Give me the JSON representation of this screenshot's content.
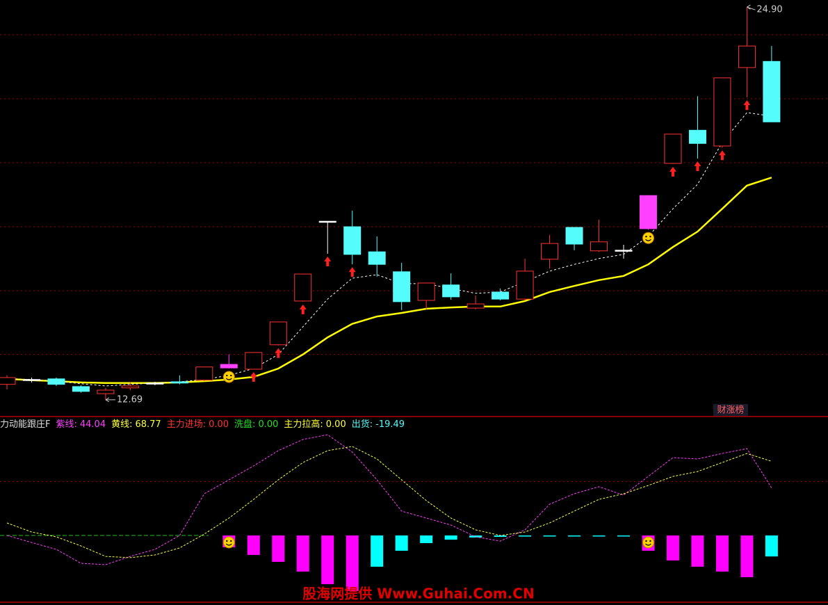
{
  "chart_data": [
    {
      "type": "candlestick",
      "open": [
        13.17,
        13.3,
        13.34,
        13.1,
        12.88,
        13.06,
        13.19,
        13.25,
        13.3,
        13.68,
        13.64,
        14.4,
        15.76,
        18.22,
        18.07,
        17.29,
        16.67,
        15.78,
        16.26,
        15.54,
        16.04,
        15.82,
        17.06,
        18.05,
        17.32,
        17.34,
        18.01,
        20.04,
        21.07,
        20.58,
        23.02,
        23.21
      ],
      "high": [
        13.45,
        13.38,
        13.38,
        13.14,
        13.06,
        13.25,
        13.25,
        13.45,
        13.71,
        14.1,
        14.16,
        15.11,
        16.6,
        18.24,
        18.57,
        17.77,
        16.95,
        16.32,
        16.62,
        15.93,
        16.15,
        17.08,
        17.81,
        18.05,
        18.29,
        17.51,
        19.04,
        20.95,
        22.13,
        22.7,
        24.9,
        23.69
      ],
      "low": [
        13.01,
        13.23,
        13.12,
        12.91,
        12.69,
        12.99,
        13.14,
        13.17,
        13.27,
        13.66,
        13.64,
        14.38,
        15.74,
        17.23,
        16.9,
        16.52,
        15.48,
        15.5,
        15.8,
        15.5,
        15.78,
        15.78,
        16.77,
        17.34,
        17.29,
        17.08,
        17.98,
        20.02,
        20.19,
        20.53,
        22.09,
        21.33
      ],
      "close": [
        13.38,
        13.32,
        13.17,
        12.95,
        12.99,
        13.12,
        13.21,
        13.21,
        13.71,
        13.79,
        14.16,
        15.11,
        16.6,
        18.24,
        17.21,
        16.9,
        15.74,
        16.32,
        15.89,
        15.67,
        15.82,
        16.69,
        17.55,
        17.53,
        17.6,
        17.34,
        19.04,
        20.95,
        20.66,
        22.7,
        23.69,
        21.33
      ],
      "colors": [
        "#ff3232",
        "#ffffff",
        "#54fcfc",
        "#54fcfc",
        "#ff3232",
        "#ff3232",
        "#ffffff",
        "#54fcfc",
        "#ff3232",
        "#ff40ff",
        "#ff3232",
        "#ff3232",
        "#ff3232",
        "#ffffff",
        "#54fcfc",
        "#54fcfc",
        "#54fcfc",
        "#ff3232",
        "#54fcfc",
        "#ff3232",
        "#54fcfc",
        "#ff3232",
        "#ff3232",
        "#54fcfc",
        "#ff3232",
        "#ffffff",
        "#ff40ff",
        "#ff3232",
        "#54fcfc",
        "#ff3232",
        "#ff3232",
        "#54fcfc"
      ],
      "up_color": "#ff3232",
      "ylim": [
        12.19,
        25.12
      ],
      "grid": true,
      "ygrid": [
        14.1,
        16.08,
        18.07,
        20.06,
        22.05,
        24.04
      ],
      "lines": [
        {
          "color": "#ffff00",
          "dashed": false,
          "values": [
            13.34,
            13.3,
            13.27,
            13.23,
            13.21,
            13.21,
            13.21,
            13.23,
            13.27,
            13.32,
            13.4,
            13.66,
            14.1,
            14.63,
            15.05,
            15.28,
            15.39,
            15.52,
            15.56,
            15.59,
            15.59,
            15.76,
            16.04,
            16.23,
            16.41,
            16.54,
            16.9,
            17.44,
            17.92,
            18.63,
            19.35,
            19.6
          ]
        },
        {
          "color": "#ffffff",
          "dashed": true,
          "values": [
            13.34,
            13.32,
            13.27,
            13.19,
            13.12,
            13.17,
            13.21,
            13.25,
            13.32,
            13.45,
            13.66,
            14.1,
            14.96,
            15.82,
            16.47,
            16.58,
            16.3,
            16.3,
            16.15,
            16.0,
            16.04,
            16.36,
            16.69,
            16.9,
            17.08,
            17.21,
            17.77,
            18.63,
            19.39,
            20.69,
            21.62,
            21.51
          ]
        }
      ],
      "high_label": "24.90",
      "low_label": "12.69",
      "buy_arrows": [
        10,
        11,
        12,
        13,
        14,
        27,
        28,
        29,
        30
      ],
      "smileys": [
        9,
        26
      ],
      "button": "财涨榜"
    },
    {
      "type": "indicator",
      "title": "力动能跟庄F",
      "legend": [
        {
          "name": "紫线:",
          "value": 44.04,
          "color": "#ff40ff"
        },
        {
          "name": "黄线:",
          "value": 68.77,
          "color": "#ffff40"
        },
        {
          "name": "主力进场:",
          "value": {
            "value": 0,
            "label": "0.00"
          },
          "color": "#ff3232"
        },
        {
          "name": "洗盘:",
          "value": {
            "value": 0,
            "label": "0.00"
          },
          "color": "#20e020"
        },
        {
          "name": "主力拉高:",
          "value": {
            "value": 0,
            "label": "0.00"
          },
          "color": "#ffff40"
        },
        {
          "name": "出货:",
          "value": -19.49,
          "color": "#54fcfc"
        }
      ],
      "series": [
        {
          "color": "#ff40ff",
          "values": [
            0,
            -6.5,
            -12.9,
            -25.8,
            -27.1,
            -19.4,
            -12.9,
            0,
            38.7,
            51.6,
            64.5,
            78.7,
            89.1,
            93.5,
            77.4,
            51.6,
            22.6,
            16.1,
            9.7,
            -1.3,
            -5.2,
            5.2,
            29.0,
            38.7,
            45.2,
            37.4,
            54.8,
            72.2,
            71.0,
            76.1,
            80.6,
            44.04
          ]
        },
        {
          "color": "#ffff40",
          "values": [
            11.6,
            3.2,
            -1.3,
            -9.7,
            -19.4,
            -20.6,
            -18.1,
            -11.6,
            1.3,
            16.1,
            33.5,
            51.6,
            67.7,
            78.7,
            82.6,
            71.0,
            51.6,
            32.3,
            16.1,
            5.2,
            0,
            3.2,
            11.6,
            22.6,
            33.5,
            38.7,
            46.4,
            54.8,
            59.3,
            67.7,
            76.1,
            68.77
          ]
        }
      ],
      "bars": [
        null,
        null,
        null,
        null,
        null,
        null,
        null,
        null,
        null,
        -11.0,
        -18.1,
        -24.5,
        -33.5,
        -45.2,
        -51.6,
        -29.0,
        -14.2,
        -7.1,
        -3.9,
        -1.9,
        -1.3,
        -1.0,
        -0.3,
        -0.3,
        -0.3,
        -0.3,
        -14.2,
        -23.2,
        -29.0,
        -33.5,
        -38.7,
        -19.49
      ],
      "down_color": "#ff00ff",
      "up_color": "#00ffff",
      "ylim": [
        -61.3,
        108.4
      ],
      "ygrid": [
        50
      ],
      "smileys": [
        9,
        26
      ]
    }
  ],
  "watermark": "股海网提供 Www.Guhai.Com.CN"
}
